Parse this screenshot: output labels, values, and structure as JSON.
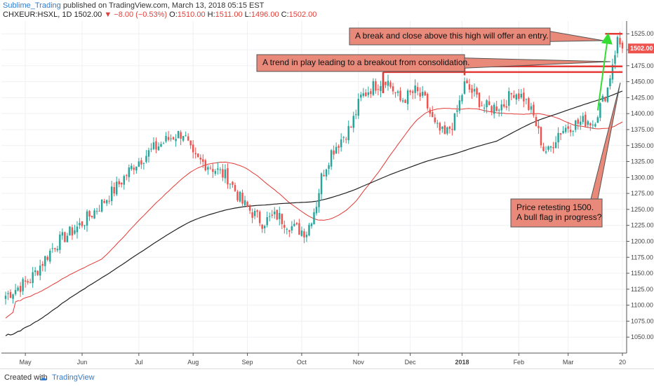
{
  "header": {
    "author": "Sublime_Trading",
    "published": "published on TradingView.com, March 13, 2018 05:15 EST",
    "symbol": "CHXEUR:HSXL, 1D",
    "last": "1502.00",
    "change": "−8.00 (−0.53%)",
    "open_label": "O:",
    "open": "1510.00",
    "high_label": "H:",
    "high": "1511.00",
    "low_label": "L:",
    "low": "1496.00",
    "close_label": "C:",
    "close": "1502.00"
  },
  "footer": {
    "created_with": "Created with",
    "brand": "TradingView",
    "brand_icon": "tradingview-logo-icon"
  },
  "colors": {
    "up": "#26a69a",
    "down": "#ef5350",
    "ma_fast": "#e53935",
    "ma_slow": "#222222",
    "level": "#e53935",
    "arrow": "#33dd33",
    "callout_fill": "#e8897a",
    "callout_border": "#555555",
    "price_tag": "#ef5350"
  },
  "chart_data": {
    "type": "candlestick",
    "ylim": [
      1025,
      1545
    ],
    "y_ticks": [
      1050,
      1075,
      1100,
      1125,
      1150,
      1175,
      1200,
      1225,
      1250,
      1275,
      1300,
      1325,
      1350,
      1375,
      1400,
      1425,
      1450,
      1475,
      1500,
      1525
    ],
    "y_tick_labels": [
      "1050.00",
      "1075.00",
      "1100.00",
      "1125.00",
      "1150.00",
      "1175.00",
      "1200.00",
      "1225.00",
      "1250.00",
      "1275.00",
      "1300.00",
      "1325.00",
      "1350.00",
      "1375.00",
      "1400.00",
      "1425.00",
      "1450.00",
      "1475.00",
      "1500.00",
      "1525.00"
    ],
    "x_labels": [
      "May",
      "Jun",
      "Jul",
      "Aug",
      "Sep",
      "Oct",
      "Nov",
      "Dec",
      "2018",
      "Feb",
      "Mar",
      "20"
    ],
    "x_label_index": [
      8,
      31,
      54,
      76,
      98,
      120,
      143,
      164,
      185,
      208,
      228,
      250
    ],
    "price_label": "1502.00",
    "last_price": 1502,
    "key_levels": [
      {
        "from": 153,
        "to": 250,
        "value": 1465
      },
      {
        "from": 186,
        "to": 250,
        "value": 1474
      },
      {
        "from": 243,
        "to": 250,
        "value": 1525
      }
    ],
    "annotations": [
      {
        "text": "A break and close above this high will offer an entry."
      },
      {
        "text": "A trend in play leading to a breakout from consolidation."
      },
      {
        "text": "Price retesting 1500."
      },
      {
        "text": "A bull flag in progress?"
      }
    ],
    "anchors": [
      [
        0,
        1115
      ],
      [
        10,
        1140
      ],
      [
        20,
        1195
      ],
      [
        30,
        1225
      ],
      [
        38,
        1255
      ],
      [
        45,
        1285
      ],
      [
        52,
        1320
      ],
      [
        60,
        1345
      ],
      [
        68,
        1365
      ],
      [
        72,
        1370
      ],
      [
        76,
        1330
      ],
      [
        82,
        1320
      ],
      [
        90,
        1300
      ],
      [
        96,
        1260
      ],
      [
        104,
        1230
      ],
      [
        110,
        1240
      ],
      [
        117,
        1220
      ],
      [
        122,
        1215
      ],
      [
        126,
        1260
      ],
      [
        128,
        1300
      ],
      [
        132,
        1340
      ],
      [
        136,
        1360
      ],
      [
        140,
        1380
      ],
      [
        144,
        1425
      ],
      [
        148,
        1440
      ],
      [
        152,
        1450
      ],
      [
        154,
        1455
      ],
      [
        160,
        1420
      ],
      [
        166,
        1435
      ],
      [
        170,
        1420
      ],
      [
        174,
        1380
      ],
      [
        178,
        1365
      ],
      [
        182,
        1390
      ],
      [
        186,
        1445
      ],
      [
        190,
        1430
      ],
      [
        194,
        1410
      ],
      [
        198,
        1410
      ],
      [
        202,
        1415
      ],
      [
        206,
        1435
      ],
      [
        210,
        1425
      ],
      [
        214,
        1395
      ],
      [
        218,
        1345
      ],
      [
        220,
        1340
      ],
      [
        224,
        1370
      ],
      [
        228,
        1380
      ],
      [
        232,
        1385
      ],
      [
        236,
        1390
      ],
      [
        238,
        1385
      ],
      [
        242,
        1420
      ],
      [
        244,
        1440
      ],
      [
        246,
        1480
      ],
      [
        248,
        1515
      ],
      [
        250,
        1502
      ]
    ]
  }
}
